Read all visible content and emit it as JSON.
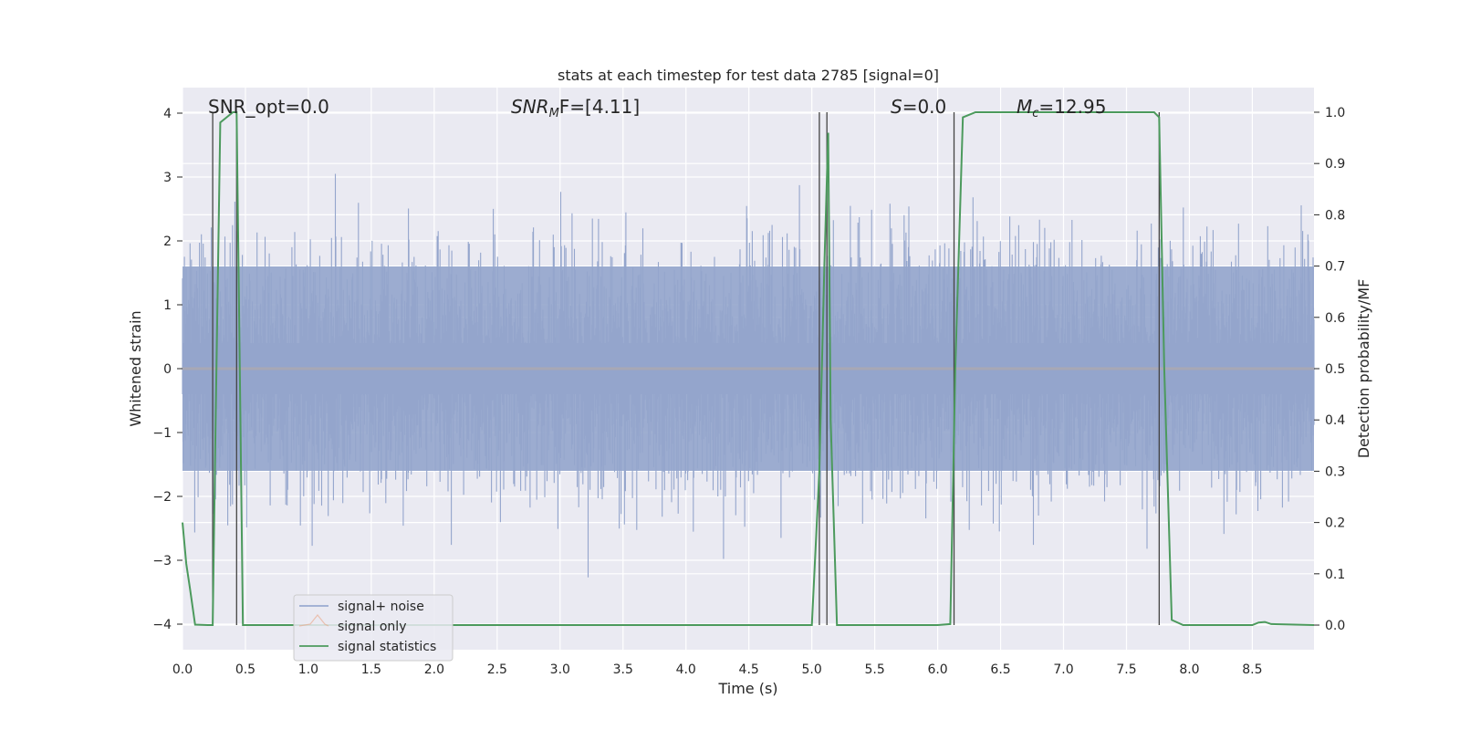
{
  "chart_data": {
    "type": "line",
    "title": "stats at each timestep for test data 2785 [signal=0]",
    "xlabel": "Time (s)",
    "ylabel_left": "Whitened strain",
    "ylabel_right": "Detection probability/MF",
    "xlim": [
      0.0,
      8.99
    ],
    "ylim_left": [
      -4.4,
      4.4
    ],
    "ylim_right": [
      -0.048,
      1.048
    ],
    "grid": true,
    "x_ticks": [
      "0.0",
      "0.5",
      "1.0",
      "1.5",
      "2.0",
      "2.5",
      "3.0",
      "3.5",
      "4.0",
      "4.5",
      "5.0",
      "5.5",
      "6.0",
      "6.5",
      "7.0",
      "7.5",
      "8.0",
      "8.5"
    ],
    "x_tick_values": [
      0.0,
      0.5,
      1.0,
      1.5,
      2.0,
      2.5,
      3.0,
      3.5,
      4.0,
      4.5,
      5.0,
      5.5,
      6.0,
      6.5,
      7.0,
      7.5,
      8.0,
      8.5
    ],
    "y_left_ticks": [
      "4",
      "3",
      "2",
      "1",
      "0",
      "−1",
      "−2",
      "−3",
      "−4"
    ],
    "y_left_tick_values": [
      4,
      3,
      2,
      1,
      0,
      -1,
      -2,
      -3,
      -4
    ],
    "y_right_ticks": [
      "1.0",
      "0.9",
      "0.8",
      "0.7",
      "0.6",
      "0.5",
      "0.4",
      "0.3",
      "0.2",
      "0.1",
      "0.0"
    ],
    "y_right_tick_values": [
      1.0,
      0.9,
      0.8,
      0.7,
      0.6,
      0.5,
      0.4,
      0.3,
      0.2,
      0.1,
      0.0
    ],
    "annotations": {
      "snr_opt": "SNR_opt=0.0",
      "snr_mf_prefix": "SNR",
      "snr_mf_sub": "M",
      "snr_mf_suffix": "F=[4.11]",
      "s_prefix": "S",
      "s_suffix": "=0.0",
      "mc_prefix": "M",
      "mc_sub": "c",
      "mc_suffix": "=12.95"
    },
    "legend": {
      "placement": "lower-left",
      "entries": [
        {
          "label": "signal+ noise",
          "color": "#8da0cb"
        },
        {
          "label": "signal only",
          "color": "#e9a384"
        },
        {
          "label": "signal statistics",
          "color": "#4c9a5d"
        }
      ]
    },
    "series": [
      {
        "name": "signal+ noise",
        "axis": "left",
        "color": "#94a5cc",
        "style": "dense noise band",
        "core_band": [
          -1.6,
          1.6
        ],
        "spike_max": [
          4.0,
          3.2
        ],
        "spike_min": [
          -3.8,
          -3.3
        ],
        "x_range": [
          0.0,
          8.99
        ]
      },
      {
        "name": "signal only",
        "axis": "left",
        "color": "#e9a384",
        "x": [
          0.0,
          8.99
        ],
        "y": [
          0.0,
          0.0
        ]
      },
      {
        "name": "signal statistics",
        "axis": "right",
        "color": "#4c9a5d",
        "x": [
          0.0,
          0.03,
          0.06,
          0.1,
          0.2,
          0.24,
          0.26,
          0.3,
          0.35,
          0.4,
          0.43,
          0.45,
          0.48,
          0.6,
          1.0,
          2.0,
          3.0,
          4.0,
          4.5,
          5.0,
          5.06,
          5.1,
          5.13,
          5.15,
          5.2,
          5.4,
          6.0,
          6.1,
          6.14,
          6.2,
          6.3,
          6.5,
          7.0,
          7.5,
          7.72,
          7.76,
          7.8,
          7.86,
          7.95,
          8.2,
          8.5,
          8.55,
          8.6,
          8.65,
          8.99
        ],
        "y": [
          0.2,
          0.12,
          0.07,
          0.001,
          0.0,
          0.0,
          0.35,
          0.98,
          0.99,
          1.0,
          1.0,
          0.6,
          0.0,
          0.0,
          0.0,
          0.0,
          0.0,
          0.0,
          0.0,
          0.0,
          0.3,
          0.7,
          0.96,
          0.4,
          0.0,
          0.0,
          0.0,
          0.002,
          0.5,
          0.99,
          1.0,
          1.0,
          1.0,
          1.0,
          1.0,
          0.99,
          0.5,
          0.01,
          0.0,
          0.0,
          0.0,
          0.005,
          0.006,
          0.002,
          0.0
        ]
      }
    ],
    "vertical_markers_x": [
      0.24,
      0.43,
      5.06,
      5.12,
      6.13,
      7.76
    ]
  }
}
